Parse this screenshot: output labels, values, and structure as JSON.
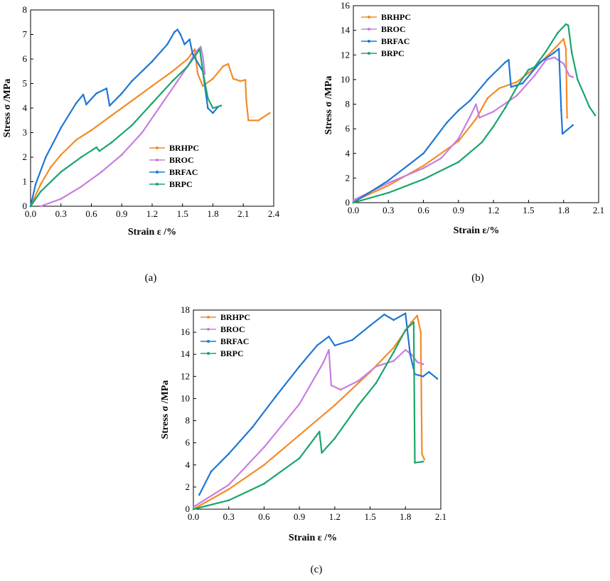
{
  "chart_data": [
    {
      "type": "line",
      "panel_label": "(a)",
      "xlabel": "Strain ε /%",
      "ylabel": "Stress σ /MPa",
      "xlim": [
        0,
        2.4
      ],
      "ylim": [
        0,
        8
      ],
      "xticks": [
        "0.0",
        "0.3",
        "0.6",
        "0.9",
        "1.2",
        "1.5",
        "1.8",
        "2.1",
        "2.4"
      ],
      "yticks": [
        "0",
        "1",
        "2",
        "3",
        "4",
        "5",
        "6",
        "7",
        "8"
      ],
      "legend_position": "lower-right",
      "series": [
        {
          "name": "BRHPC",
          "color": "#f28c28",
          "points": [
            [
              0,
              0
            ],
            [
              0.1,
              0.9
            ],
            [
              0.2,
              1.6
            ],
            [
              0.3,
              2.1
            ],
            [
              0.45,
              2.7
            ],
            [
              0.6,
              3.1
            ],
            [
              0.8,
              3.7
            ],
            [
              1.0,
              4.3
            ],
            [
              1.2,
              4.9
            ],
            [
              1.4,
              5.5
            ],
            [
              1.55,
              6.0
            ],
            [
              1.62,
              6.4
            ],
            [
              1.65,
              5.4
            ],
            [
              1.7,
              4.9
            ],
            [
              1.8,
              5.2
            ],
            [
              1.9,
              5.7
            ],
            [
              1.95,
              5.8
            ],
            [
              2.0,
              5.2
            ],
            [
              2.07,
              5.1
            ],
            [
              2.12,
              5.15
            ],
            [
              2.13,
              4.3
            ],
            [
              2.15,
              3.5
            ],
            [
              2.25,
              3.5
            ],
            [
              2.36,
              3.8
            ]
          ]
        },
        {
          "name": "BROC",
          "color": "#c77ee0",
          "points": [
            [
              0.1,
              0
            ],
            [
              0.3,
              0.3
            ],
            [
              0.5,
              0.8
            ],
            [
              0.7,
              1.4
            ],
            [
              0.9,
              2.1
            ],
            [
              1.1,
              3.0
            ],
            [
              1.3,
              4.2
            ],
            [
              1.45,
              5.1
            ],
            [
              1.55,
              5.7
            ],
            [
              1.63,
              6.3
            ],
            [
              1.68,
              6.5
            ],
            [
              1.7,
              6.1
            ],
            [
              1.72,
              5.4
            ]
          ]
        },
        {
          "name": "BRFAC",
          "color": "#1f77d4",
          "points": [
            [
              0,
              0
            ],
            [
              0.05,
              0.9
            ],
            [
              0.15,
              2.0
            ],
            [
              0.3,
              3.2
            ],
            [
              0.45,
              4.2
            ],
            [
              0.52,
              4.55
            ],
            [
              0.55,
              4.15
            ],
            [
              0.65,
              4.6
            ],
            [
              0.75,
              4.8
            ],
            [
              0.78,
              4.1
            ],
            [
              0.9,
              4.6
            ],
            [
              1.0,
              5.1
            ],
            [
              1.2,
              5.9
            ],
            [
              1.35,
              6.6
            ],
            [
              1.42,
              7.1
            ],
            [
              1.45,
              7.2
            ],
            [
              1.48,
              7.0
            ],
            [
              1.52,
              6.6
            ],
            [
              1.57,
              6.8
            ],
            [
              1.6,
              6.2
            ],
            [
              1.7,
              5.5
            ],
            [
              1.75,
              4.0
            ],
            [
              1.8,
              3.8
            ],
            [
              1.85,
              4.05
            ]
          ]
        },
        {
          "name": "BRPC",
          "color": "#1aa56a",
          "points": [
            [
              0,
              0
            ],
            [
              0.1,
              0.6
            ],
            [
              0.3,
              1.4
            ],
            [
              0.5,
              2.0
            ],
            [
              0.65,
              2.4
            ],
            [
              0.68,
              2.25
            ],
            [
              0.8,
              2.6
            ],
            [
              1.0,
              3.3
            ],
            [
              1.2,
              4.2
            ],
            [
              1.4,
              5.1
            ],
            [
              1.55,
              5.7
            ],
            [
              1.67,
              6.4
            ],
            [
              1.7,
              5.5
            ],
            [
              1.75,
              4.4
            ],
            [
              1.8,
              4.0
            ],
            [
              1.88,
              4.1
            ]
          ]
        }
      ]
    },
    {
      "type": "line",
      "panel_label": "(b)",
      "xlabel": "Strain ε/%",
      "ylabel": "Stress σ /MPa",
      "xlim": [
        0,
        2.1
      ],
      "ylim": [
        0,
        16
      ],
      "xticks": [
        "0.0",
        "0.3",
        "0.6",
        "0.9",
        "1.2",
        "1.5",
        "1.8",
        "2.1"
      ],
      "yticks": [
        "0",
        "2",
        "4",
        "6",
        "8",
        "10",
        "12",
        "14",
        "16"
      ],
      "legend_position": "top-left",
      "series": [
        {
          "name": "BRHPC",
          "color": "#f28c28",
          "points": [
            [
              0,
              0.1
            ],
            [
              0.3,
              1.4
            ],
            [
              0.6,
              3.0
            ],
            [
              0.9,
              5.0
            ],
            [
              1.05,
              6.8
            ],
            [
              1.15,
              8.5
            ],
            [
              1.25,
              9.3
            ],
            [
              1.4,
              9.8
            ],
            [
              1.55,
              10.9
            ],
            [
              1.7,
              12.3
            ],
            [
              1.8,
              13.3
            ],
            [
              1.82,
              12.5
            ],
            [
              1.83,
              6.9
            ]
          ]
        },
        {
          "name": "BROC",
          "color": "#c77ee0",
          "points": [
            [
              0,
              0.2
            ],
            [
              0.3,
              1.6
            ],
            [
              0.6,
              2.8
            ],
            [
              0.75,
              3.6
            ],
            [
              0.9,
              5.2
            ],
            [
              1.0,
              7.0
            ],
            [
              1.05,
              8.0
            ],
            [
              1.08,
              6.9
            ],
            [
              1.2,
              7.4
            ],
            [
              1.4,
              8.7
            ],
            [
              1.55,
              10.3
            ],
            [
              1.65,
              11.6
            ],
            [
              1.72,
              11.8
            ],
            [
              1.8,
              11.3
            ],
            [
              1.85,
              10.3
            ],
            [
              1.88,
              10.2
            ]
          ]
        },
        {
          "name": "BRFAC",
          "color": "#1f77d4",
          "points": [
            [
              0,
              0
            ],
            [
              0.3,
              1.8
            ],
            [
              0.6,
              4.0
            ],
            [
              0.8,
              6.5
            ],
            [
              0.9,
              7.5
            ],
            [
              1.0,
              8.3
            ],
            [
              1.15,
              10.0
            ],
            [
              1.3,
              11.4
            ],
            [
              1.33,
              11.6
            ],
            [
              1.35,
              9.4
            ],
            [
              1.45,
              9.7
            ],
            [
              1.6,
              11.4
            ],
            [
              1.72,
              12.2
            ],
            [
              1.76,
              12.5
            ],
            [
              1.78,
              7.5
            ],
            [
              1.79,
              5.6
            ],
            [
              1.88,
              6.3
            ]
          ]
        },
        {
          "name": "BRPC",
          "color": "#1aa56a",
          "points": [
            [
              0,
              0
            ],
            [
              0.3,
              0.8
            ],
            [
              0.6,
              1.9
            ],
            [
              0.9,
              3.3
            ],
            [
              1.1,
              4.9
            ],
            [
              1.2,
              6.2
            ],
            [
              1.3,
              7.7
            ],
            [
              1.4,
              9.4
            ],
            [
              1.5,
              10.8
            ],
            [
              1.55,
              11.0
            ],
            [
              1.65,
              12.3
            ],
            [
              1.75,
              13.8
            ],
            [
              1.82,
              14.5
            ],
            [
              1.84,
              14.4
            ],
            [
              1.87,
              12.2
            ],
            [
              1.92,
              10.0
            ],
            [
              1.98,
              8.7
            ],
            [
              2.02,
              7.8
            ],
            [
              2.07,
              7.1
            ]
          ]
        }
      ]
    },
    {
      "type": "line",
      "panel_label": "(c)",
      "xlabel": "Strain ε /%",
      "ylabel": "Stress σ /MPa",
      "xlim": [
        0,
        2.1
      ],
      "ylim": [
        0,
        18
      ],
      "xticks": [
        "0.0",
        "0.3",
        "0.6",
        "0.9",
        "1.2",
        "1.5",
        "1.8",
        "2.1"
      ],
      "yticks": [
        "0",
        "2",
        "4",
        "6",
        "8",
        "10",
        "12",
        "14",
        "16",
        "18"
      ],
      "legend_position": "top-left",
      "series": [
        {
          "name": "BRHPC",
          "color": "#f28c28",
          "points": [
            [
              0,
              0
            ],
            [
              0.3,
              1.8
            ],
            [
              0.6,
              4.0
            ],
            [
              0.9,
              6.7
            ],
            [
              1.2,
              9.4
            ],
            [
              1.5,
              12.4
            ],
            [
              1.7,
              14.6
            ],
            [
              1.85,
              16.9
            ],
            [
              1.9,
              17.5
            ],
            [
              1.93,
              16.0
            ],
            [
              1.94,
              5.0
            ],
            [
              1.96,
              4.5
            ]
          ]
        },
        {
          "name": "BROC",
          "color": "#c77ee0",
          "points": [
            [
              0,
              0.2
            ],
            [
              0.3,
              2.2
            ],
            [
              0.6,
              5.6
            ],
            [
              0.9,
              9.5
            ],
            [
              1.1,
              13.2
            ],
            [
              1.15,
              14.4
            ],
            [
              1.17,
              11.2
            ],
            [
              1.25,
              10.8
            ],
            [
              1.4,
              11.6
            ],
            [
              1.55,
              12.9
            ],
            [
              1.7,
              13.4
            ],
            [
              1.8,
              14.4
            ],
            [
              1.85,
              14.0
            ],
            [
              1.9,
              13.3
            ],
            [
              1.95,
              13.1
            ]
          ]
        },
        {
          "name": "BRFAC",
          "color": "#1f77d4",
          "points": [
            [
              0.05,
              1.3
            ],
            [
              0.15,
              3.4
            ],
            [
              0.3,
              5.0
            ],
            [
              0.5,
              7.4
            ],
            [
              0.7,
              10.2
            ],
            [
              0.9,
              12.9
            ],
            [
              1.05,
              14.8
            ],
            [
              1.15,
              15.6
            ],
            [
              1.2,
              14.8
            ],
            [
              1.35,
              15.3
            ],
            [
              1.5,
              16.6
            ],
            [
              1.62,
              17.6
            ],
            [
              1.7,
              17.1
            ],
            [
              1.8,
              17.7
            ],
            [
              1.84,
              14.0
            ],
            [
              1.88,
              12.2
            ],
            [
              1.95,
              12.0
            ],
            [
              2.0,
              12.4
            ],
            [
              2.07,
              11.8
            ]
          ]
        },
        {
          "name": "BRPC",
          "color": "#1aa56a",
          "points": [
            [
              0,
              0
            ],
            [
              0.3,
              0.8
            ],
            [
              0.6,
              2.3
            ],
            [
              0.9,
              4.6
            ],
            [
              1.07,
              7.0
            ],
            [
              1.09,
              5.1
            ],
            [
              1.2,
              6.4
            ],
            [
              1.4,
              9.4
            ],
            [
              1.55,
              11.4
            ],
            [
              1.7,
              14.2
            ],
            [
              1.8,
              16.2
            ],
            [
              1.87,
              16.9
            ],
            [
              1.88,
              4.2
            ],
            [
              1.95,
              4.3
            ]
          ]
        }
      ]
    }
  ]
}
